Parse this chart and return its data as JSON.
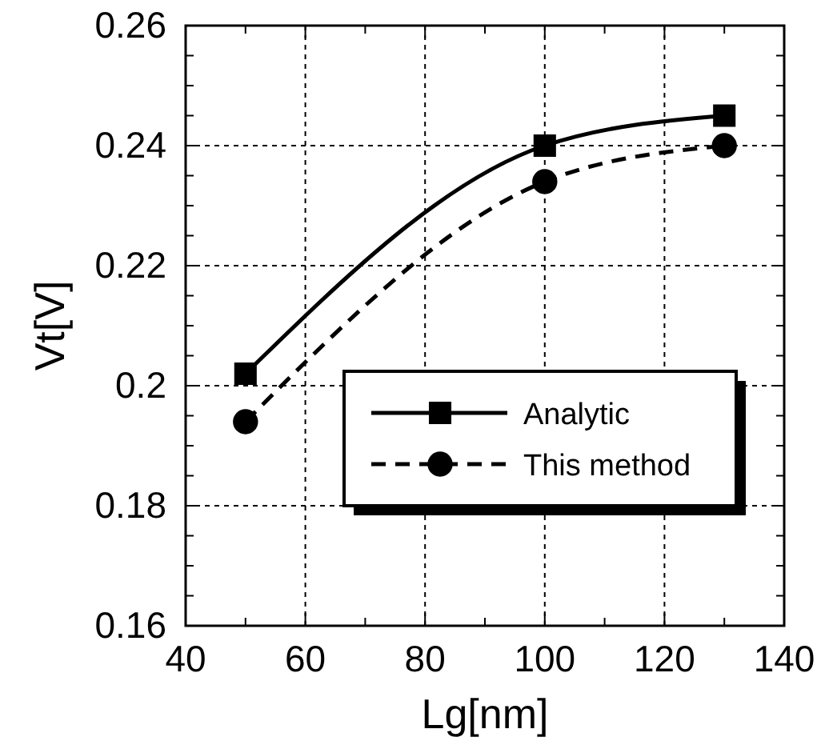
{
  "chart_data": {
    "type": "line",
    "xlabel": "Lg[nm]",
    "ylabel": "Vt[V]",
    "x": [
      50,
      100,
      130
    ],
    "series": [
      {
        "name": "Analytic",
        "color": "#000000",
        "values": [
          0.202,
          0.24,
          0.245
        ],
        "marker": "square",
        "line_style": "solid"
      },
      {
        "name": "This method",
        "color": "#000000",
        "values": [
          0.194,
          0.234,
          0.24
        ],
        "marker": "circle",
        "line_style": "dashed"
      }
    ],
    "xlim": [
      40,
      140
    ],
    "xticks": [
      40,
      {
        "value": 50,
        "label": null
      },
      60,
      {
        "value": 70,
        "label": null
      },
      80,
      {
        "value": 90,
        "label": null
      },
      100,
      {
        "value": 110,
        "label": null
      },
      120,
      {
        "value": 130,
        "label": null
      },
      140
    ],
    "ylim": [
      0.16,
      0.26
    ],
    "yticks": [
      0.16,
      {
        "value": 0.165,
        "label": null
      },
      {
        "value": 0.17,
        "label": null
      },
      {
        "value": 0.175,
        "label": null
      },
      0.18,
      {
        "value": 0.185,
        "label": null
      },
      {
        "value": 0.19,
        "label": null
      },
      {
        "value": 0.195,
        "label": null
      },
      0.2,
      {
        "value": 0.205,
        "label": null
      },
      {
        "value": 0.21,
        "label": null
      },
      {
        "value": 0.215,
        "label": null
      },
      0.22,
      {
        "value": 0.225,
        "label": null
      },
      {
        "value": 0.23,
        "label": null
      },
      {
        "value": 0.235,
        "label": null
      },
      0.24,
      {
        "value": 0.245,
        "label": null
      },
      {
        "value": 0.25,
        "label": null
      },
      {
        "value": 0.255,
        "label": null
      },
      0.26
    ],
    "grid": true,
    "legend": "bottom right"
  }
}
